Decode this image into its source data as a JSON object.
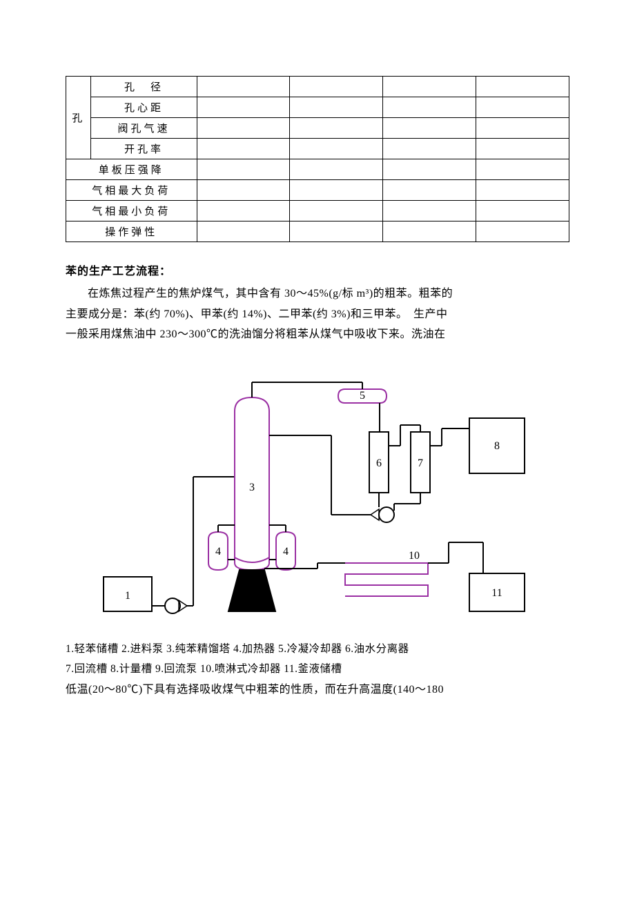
{
  "table": {
    "group_label": "孔",
    "nested_rows": [
      "孔　径",
      "孔心距",
      "阀孔气速",
      "开孔率"
    ],
    "full_rows": [
      "单板压强降",
      "气相最大负荷",
      "气相最小负荷",
      "操作弹性"
    ]
  },
  "section_title": "苯的生产工艺流程：",
  "paragraph_lines": [
    "在炼焦过程产生的焦炉煤气，其中含有 30～45%(g/标 m³)的粗苯。粗苯的",
    "主要成分是：苯(约 70%)、甲苯(约 14%)、二甲苯(约 3%)和三甲苯。　生产中",
    "一般采用煤焦油中 230～300℃的洗油馏分将粗苯从煤气中吸收下来。洗油在"
  ],
  "legend_lines": [
    "1.轻苯储槽  2.进料泵  3.纯苯精馏塔  4.加热器  5.冷凝冷却器  6.油水分离器",
    "7.回流槽  8.计量槽  9.回流泵  10.喷淋式冷却器  11.釜液储槽"
  ],
  "follow_line": "低温(20～80℃)下具有选择吸收煤气中粗苯的性质，而在升高温度(140～180",
  "diagram": {
    "purple": "#9a2fa3",
    "black": "#000000",
    "bg": "#ffffff",
    "stroke_w": 2,
    "label_font": 16,
    "labels": {
      "1": "1",
      "3": "3",
      "4": "4",
      "5": "5",
      "6": "6",
      "7": "7",
      "8": "8",
      "10": "10",
      "11": "11"
    }
  }
}
